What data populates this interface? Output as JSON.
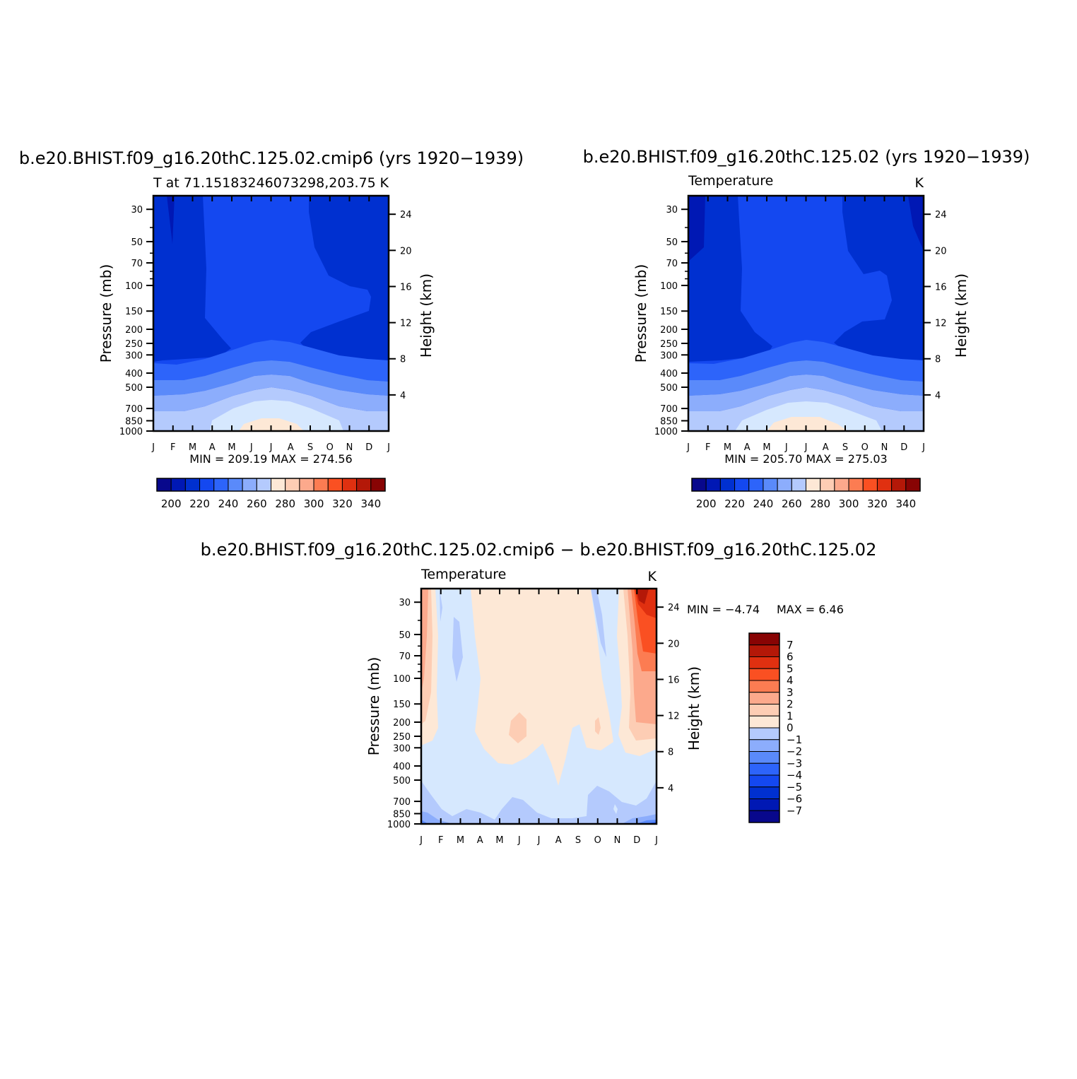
{
  "palette": [
    "#08088c",
    "#0018b4",
    "#0030d0",
    "#1448f0",
    "#2d64fa",
    "#5a8afa",
    "#8cadfc",
    "#b4cafd",
    "#d6e8fe",
    "#fde8d6",
    "#fdcdb4",
    "#fca98c",
    "#fc7c52",
    "#fa5022",
    "#e03010",
    "#b41808",
    "#880404"
  ],
  "axes": {
    "months": [
      "J",
      "F",
      "M",
      "A",
      "M",
      "J",
      "J",
      "A",
      "S",
      "O",
      "N",
      "D",
      "J"
    ],
    "pressure_ticks": [
      "30",
      "50",
      "70",
      "100",
      "150",
      "200",
      "250",
      "300",
      "400",
      "500",
      "700",
      "850",
      "1000"
    ],
    "height_ticks": [
      "24",
      "20",
      "16",
      "12",
      "8",
      "4"
    ],
    "ylabel": "Pressure (mb)",
    "ylabel2": "Height (km)"
  },
  "chart_data": [
    {
      "type": "heatmap",
      "panel": "top-left",
      "title": "b.e20.BHIST.f09_g16.20thC.125.02.cmip6 (yrs 1920−1939)",
      "left_subtitle": "T at 71.15183246073298,203.75",
      "right_subtitle": "K",
      "x": [
        "J",
        "F",
        "M",
        "A",
        "M",
        "J",
        "J",
        "A",
        "S",
        "O",
        "N",
        "D",
        "J"
      ],
      "pressure_ticks": [
        "30",
        "50",
        "70",
        "100",
        "150",
        "200",
        "250",
        "300",
        "400",
        "500",
        "700",
        "850",
        "1000"
      ],
      "min_label": "MIN = 209.19",
      "max_label": "MAX = 274.56",
      "min": 209.19,
      "max": 274.56,
      "colorbar_labels": [
        "200",
        "220",
        "240",
        "260",
        "280",
        "300",
        "320",
        "340"
      ],
      "levels": [
        195,
        200,
        205,
        210,
        215,
        220,
        230,
        240,
        250,
        260,
        270,
        280,
        290,
        300,
        310,
        320,
        330,
        340,
        350
      ]
    },
    {
      "type": "heatmap",
      "panel": "top-right",
      "title": "b.e20.BHIST.f09_g16.20thC.125.02 (yrs 1920−1939)",
      "left_subtitle": "Temperature",
      "right_subtitle": "K",
      "x": [
        "J",
        "F",
        "M",
        "A",
        "M",
        "J",
        "J",
        "A",
        "S",
        "O",
        "N",
        "D",
        "J"
      ],
      "pressure_ticks": [
        "30",
        "50",
        "70",
        "100",
        "150",
        "200",
        "250",
        "300",
        "400",
        "500",
        "700",
        "850",
        "1000"
      ],
      "min_label": "MIN = 205.70",
      "max_label": "MAX = 275.03",
      "min": 205.7,
      "max": 275.03,
      "colorbar_labels": [
        "200",
        "220",
        "240",
        "260",
        "280",
        "300",
        "320",
        "340"
      ]
    },
    {
      "type": "heatmap",
      "panel": "bottom-difference",
      "title": "b.e20.BHIST.f09_g16.20thC.125.02.cmip6 − b.e20.BHIST.f09_g16.20thC.125.02",
      "left_subtitle": "Temperature",
      "right_subtitle": "K",
      "x": [
        "J",
        "F",
        "M",
        "A",
        "M",
        "J",
        "J",
        "A",
        "S",
        "O",
        "N",
        "D",
        "J"
      ],
      "pressure_ticks": [
        "30",
        "50",
        "70",
        "100",
        "150",
        "200",
        "250",
        "300",
        "400",
        "500",
        "700",
        "850",
        "1000"
      ],
      "min_label": "MIN =   −4.74",
      "max_label": "MAX =    6.46",
      "min": -4.74,
      "max": 6.46,
      "colorbar_labels": [
        "7",
        "6",
        "5",
        "4",
        "3",
        "2",
        "1",
        "0",
        "−1",
        "−2",
        "−3",
        "−4",
        "−5",
        "−6",
        "−7"
      ]
    }
  ]
}
